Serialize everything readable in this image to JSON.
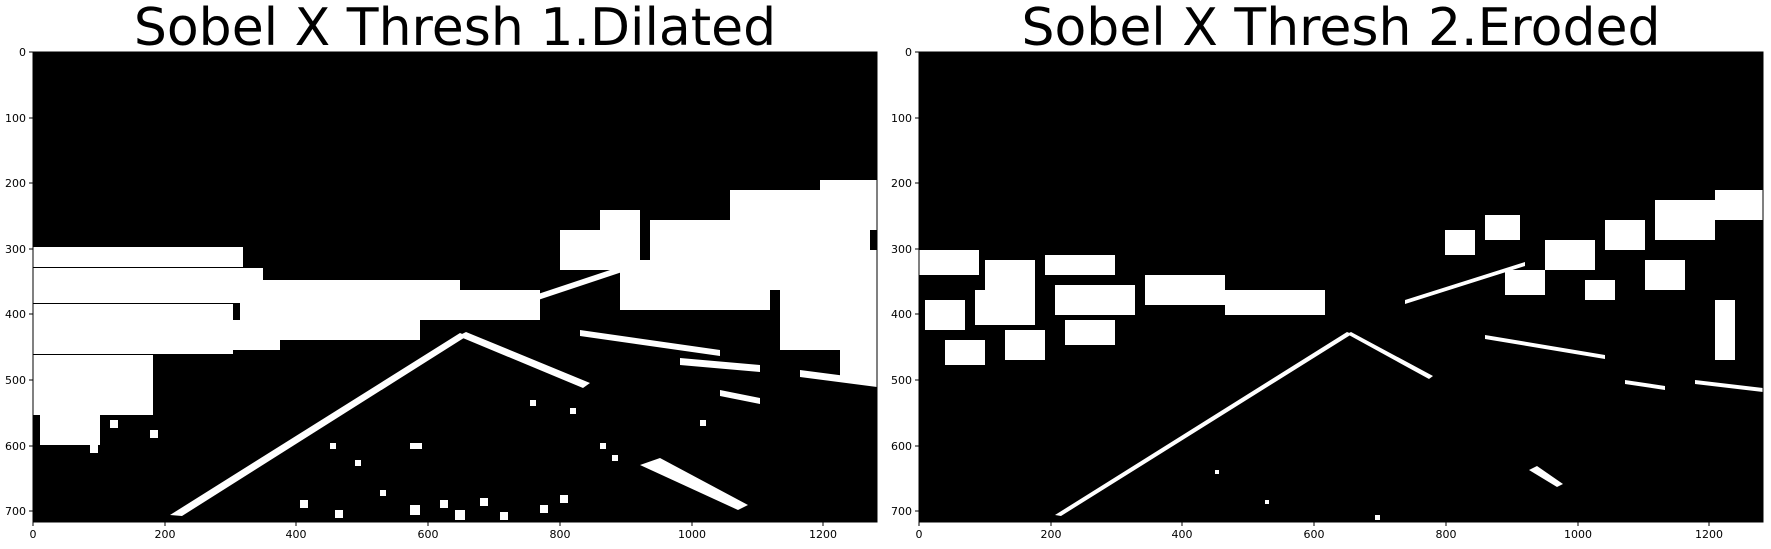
{
  "panels": [
    {
      "title": "Sobel X Thresh 1.Dilated",
      "x_ticks": [
        "0",
        "200",
        "400",
        "600",
        "800",
        "1000",
        "1200"
      ],
      "y_ticks": [
        "0",
        "100",
        "200",
        "300",
        "400",
        "500",
        "600",
        "700"
      ]
    },
    {
      "title": "Sobel X Thresh 2.Eroded",
      "x_ticks": [
        "0",
        "200",
        "400",
        "600",
        "800",
        "1000",
        "1200"
      ],
      "y_ticks": [
        "0",
        "100",
        "200",
        "300",
        "400",
        "500",
        "600",
        "700"
      ]
    }
  ],
  "colors": {
    "background": "#000000",
    "foreground": "#ffffff"
  }
}
